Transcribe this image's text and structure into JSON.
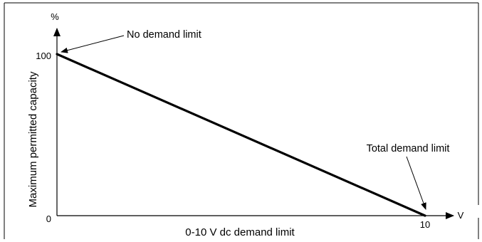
{
  "chart_data": {
    "type": "line",
    "title": "",
    "xlabel": "0-10 V dc demand limit",
    "ylabel": "Maximum permitted capacity",
    "x_unit": "V",
    "y_unit": "%",
    "xlim": [
      0,
      10
    ],
    "ylim": [
      0,
      100
    ],
    "x_ticks": [
      "0",
      "10"
    ],
    "y_ticks": [
      "0",
      "100"
    ],
    "grid": false,
    "series": [
      {
        "x": [
          0,
          10
        ],
        "y": [
          100,
          0
        ]
      }
    ],
    "annotations": [
      {
        "text": "No demand limit",
        "x": 0,
        "y": 100
      },
      {
        "text": "Total demand limit",
        "x": 10,
        "y": 0
      }
    ]
  }
}
